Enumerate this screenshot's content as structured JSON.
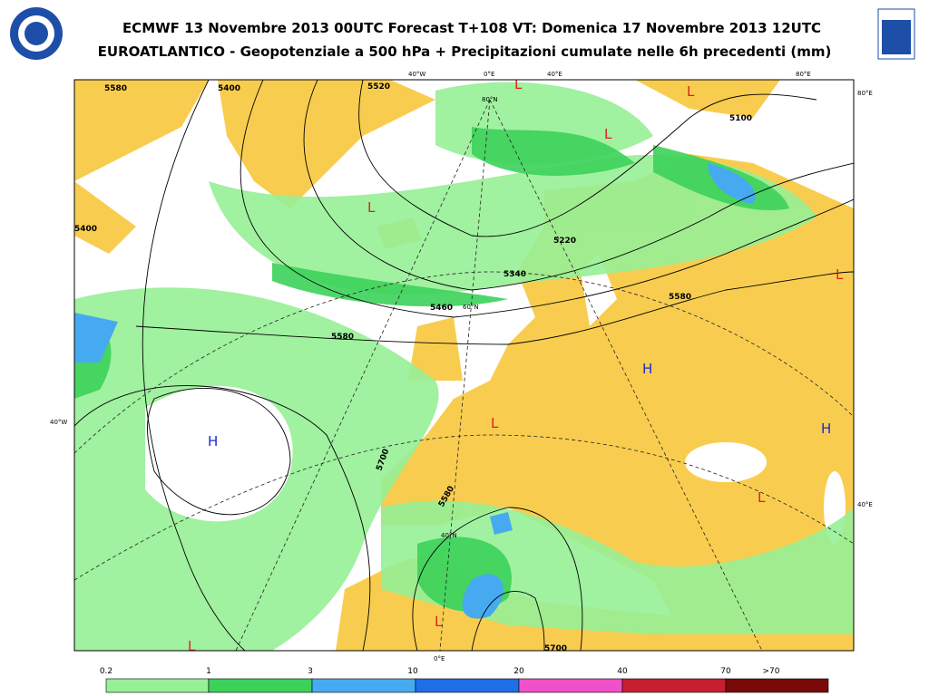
{
  "header": {
    "title_line1": "ECMWF 13 Novembre 2013 00UTC Forecast T+108 VT: Domenica 17 Novembre 2013 12UTC",
    "title_line2": "EUROATLANTICO - Geopotenziale a 500 hPa + Precipitazioni cumulate nelle 6h precedenti (mm)"
  },
  "map": {
    "graticule_labels": [
      "40°W",
      "0°E",
      "40°E",
      "80°E",
      "80°E",
      "40°W",
      "40°E",
      "0°E",
      "80°N",
      "60°N",
      "40°N"
    ],
    "pressure_centers": [
      "L",
      "L",
      "L",
      "L",
      "L",
      "L",
      "L",
      "L",
      "L",
      "H",
      "H",
      "H"
    ],
    "contour_labels": [
      "5580",
      "5400",
      "5520",
      "5100",
      "5220",
      "5340",
      "5460",
      "5580",
      "5580",
      "5700",
      "5580",
      "5700",
      "5400"
    ]
  },
  "legend": {
    "labels": [
      "0.2",
      "1",
      "3",
      "10",
      "20",
      "40",
      "70",
      ">70"
    ]
  }
}
